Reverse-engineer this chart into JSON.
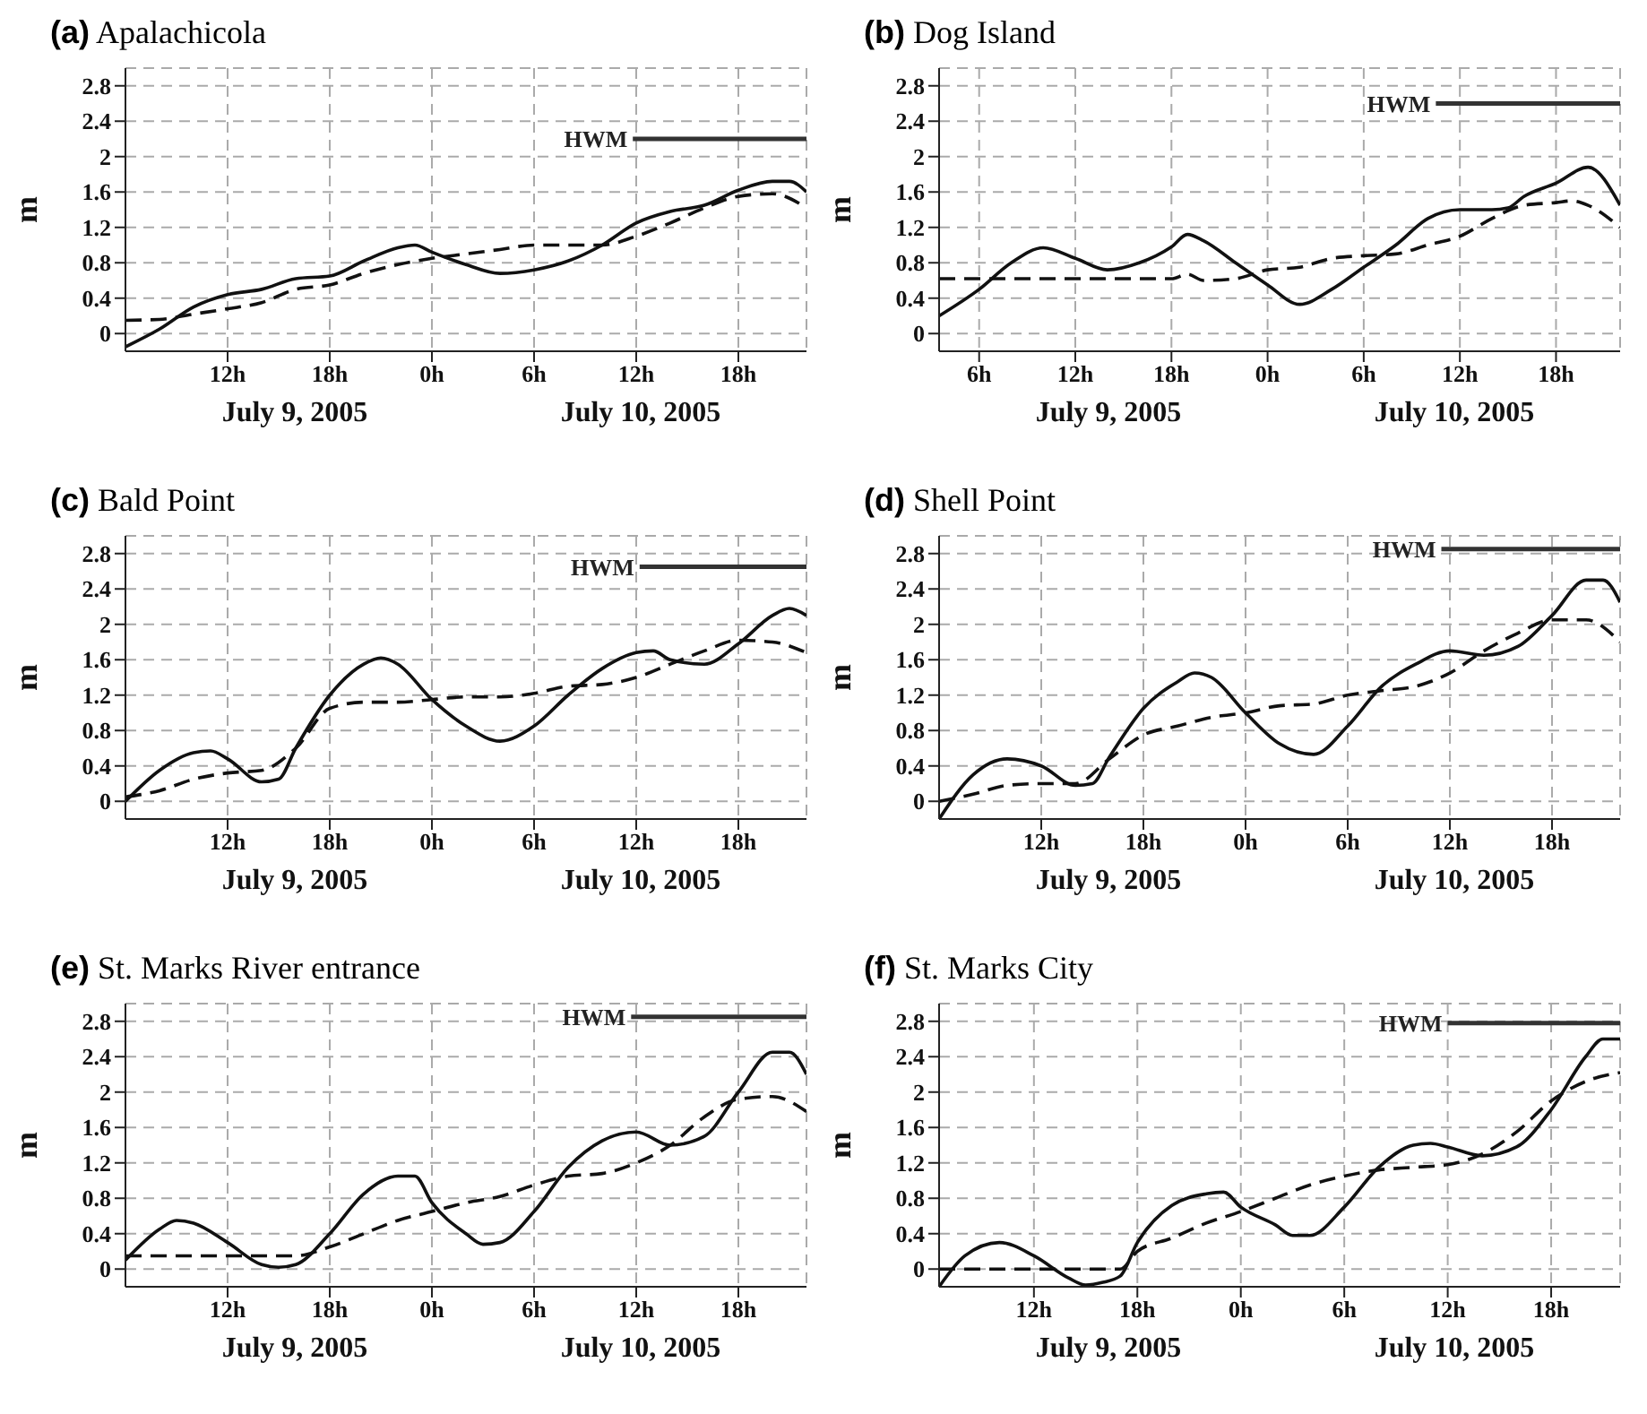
{
  "chart_data": [
    {
      "type": "line",
      "title": "(a) Apalachicola",
      "ylabel": "m",
      "annotations": [
        "July 9, 2005",
        "July 10, 2005"
      ],
      "xlim": [
        "2005-07-09T06:00",
        "2005-07-10T22:00"
      ],
      "xticks": [
        {
          "value": "2005-07-09T12:00",
          "label": "12h"
        },
        {
          "value": "2005-07-09T18:00",
          "label": "18h"
        },
        {
          "value": "2005-07-10T00:00",
          "label": "0h"
        },
        {
          "value": "2005-07-10T06:00",
          "label": "6h"
        },
        {
          "value": "2005-07-10T12:00",
          "label": "12h"
        },
        {
          "value": "2005-07-10T18:00",
          "label": "18h"
        }
      ],
      "ylim": [
        -0.2,
        3.0
      ],
      "yticks": [
        0,
        0.4,
        0.8,
        1.2,
        1.6,
        2,
        2.4,
        2.8
      ],
      "grid": true,
      "series": [
        {
          "color": "#111111",
          "line_style": "solid",
          "x": [
            "2005-07-09T06:00",
            "2005-07-09T08:00",
            "2005-07-09T10:00",
            "2005-07-09T12:00",
            "2005-07-09T14:00",
            "2005-07-09T16:00",
            "2005-07-09T18:00",
            "2005-07-09T20:00",
            "2005-07-09T22:00",
            "2005-07-09T23:00",
            "2005-07-10T00:00",
            "2005-07-10T02:00",
            "2005-07-10T04:00",
            "2005-07-10T06:00",
            "2005-07-10T08:00",
            "2005-07-10T10:00",
            "2005-07-10T12:00",
            "2005-07-10T14:00",
            "2005-07-10T16:00",
            "2005-07-10T18:00",
            "2005-07-10T20:00",
            "2005-07-10T21:00",
            "2005-07-10T22:00"
          ],
          "values": [
            -0.15,
            0.05,
            0.3,
            0.44,
            0.5,
            0.62,
            0.65,
            0.82,
            0.97,
            1.0,
            0.92,
            0.78,
            0.68,
            0.72,
            0.82,
            1.0,
            1.25,
            1.38,
            1.45,
            1.62,
            1.72,
            1.72,
            1.6
          ]
        },
        {
          "color": "#111111",
          "line_style": "dashed",
          "x": [
            "2005-07-09T06:00",
            "2005-07-09T08:00",
            "2005-07-09T10:00",
            "2005-07-09T12:00",
            "2005-07-09T14:00",
            "2005-07-09T16:00",
            "2005-07-09T18:00",
            "2005-07-09T20:00",
            "2005-07-09T22:00",
            "2005-07-10T00:00",
            "2005-07-10T02:00",
            "2005-07-10T04:00",
            "2005-07-10T06:00",
            "2005-07-10T08:00",
            "2005-07-10T10:00",
            "2005-07-10T12:00",
            "2005-07-10T14:00",
            "2005-07-10T16:00",
            "2005-07-10T18:00",
            "2005-07-10T20:00",
            "2005-07-10T22:00"
          ],
          "values": [
            0.15,
            0.16,
            0.22,
            0.28,
            0.35,
            0.5,
            0.55,
            0.68,
            0.78,
            0.85,
            0.9,
            0.95,
            1.0,
            1.0,
            1.0,
            1.1,
            1.25,
            1.42,
            1.55,
            1.58,
            1.42
          ]
        },
        {
          "name": "HWM",
          "color": "#333333",
          "line_style": "solid",
          "x": [
            "2005-07-10T11:48",
            "2005-07-10T22:00"
          ],
          "values": [
            2.2,
            2.2
          ]
        }
      ]
    },
    {
      "type": "line",
      "title": "(b) Dog Island",
      "ylabel": "m",
      "annotations": [
        "July 9, 2005",
        "July 10, 2005"
      ],
      "xlim": [
        "2005-07-09T03:30",
        "2005-07-10T22:00"
      ],
      "xticks": [
        {
          "value": "2005-07-09T06:00",
          "label": "6h"
        },
        {
          "value": "2005-07-09T12:00",
          "label": "12h"
        },
        {
          "value": "2005-07-09T18:00",
          "label": "18h"
        },
        {
          "value": "2005-07-10T00:00",
          "label": "0h"
        },
        {
          "value": "2005-07-10T06:00",
          "label": "6h"
        },
        {
          "value": "2005-07-10T12:00",
          "label": "12h"
        },
        {
          "value": "2005-07-10T18:00",
          "label": "18h"
        }
      ],
      "ylim": [
        -0.2,
        3.0
      ],
      "yticks": [
        0,
        0.4,
        0.8,
        1.2,
        1.6,
        2,
        2.4,
        2.8
      ],
      "grid": true,
      "series": [
        {
          "color": "#111111",
          "line_style": "solid",
          "x": [
            "2005-07-09T03:30",
            "2005-07-09T06:00",
            "2005-07-09T08:00",
            "2005-07-09T10:00",
            "2005-07-09T12:00",
            "2005-07-09T14:00",
            "2005-07-09T16:00",
            "2005-07-09T18:00",
            "2005-07-09T19:00",
            "2005-07-09T20:00",
            "2005-07-09T22:00",
            "2005-07-10T00:00",
            "2005-07-10T02:00",
            "2005-07-10T04:00",
            "2005-07-10T06:00",
            "2005-07-10T08:00",
            "2005-07-10T10:00",
            "2005-07-10T12:00",
            "2005-07-10T14:00",
            "2005-07-10T15:00",
            "2005-07-10T16:00",
            "2005-07-10T18:00",
            "2005-07-10T20:00",
            "2005-07-10T22:00"
          ],
          "values": [
            0.2,
            0.5,
            0.8,
            0.97,
            0.85,
            0.72,
            0.8,
            0.98,
            1.12,
            1.05,
            0.8,
            0.55,
            0.33,
            0.5,
            0.75,
            1.0,
            1.3,
            1.4,
            1.4,
            1.42,
            1.55,
            1.7,
            1.88,
            1.45
          ]
        },
        {
          "color": "#111111",
          "line_style": "dashed",
          "x": [
            "2005-07-09T03:30",
            "2005-07-09T18:00",
            "2005-07-09T19:00",
            "2005-07-09T20:00",
            "2005-07-09T22:00",
            "2005-07-10T00:00",
            "2005-07-10T02:00",
            "2005-07-10T04:00",
            "2005-07-10T06:00",
            "2005-07-10T08:00",
            "2005-07-10T10:00",
            "2005-07-10T12:00",
            "2005-07-10T14:00",
            "2005-07-10T16:00",
            "2005-07-10T18:00",
            "2005-07-10T19:00",
            "2005-07-10T20:00",
            "2005-07-10T22:00"
          ],
          "values": [
            0.62,
            0.62,
            0.67,
            0.6,
            0.62,
            0.72,
            0.75,
            0.85,
            0.88,
            0.9,
            1.0,
            1.1,
            1.3,
            1.45,
            1.48,
            1.5,
            1.45,
            1.2
          ]
        },
        {
          "name": "HWM",
          "color": "#333333",
          "line_style": "solid",
          "x": [
            "2005-07-10T10:30",
            "2005-07-10T22:00"
          ],
          "values": [
            2.6,
            2.6
          ]
        }
      ]
    },
    {
      "type": "line",
      "title": "(c) Bald Point",
      "ylabel": "m",
      "annotations": [
        "July 9, 2005",
        "July 10, 2005"
      ],
      "xlim": [
        "2005-07-09T06:00",
        "2005-07-10T22:00"
      ],
      "xticks": [
        {
          "value": "2005-07-09T12:00",
          "label": "12h"
        },
        {
          "value": "2005-07-09T18:00",
          "label": "18h"
        },
        {
          "value": "2005-07-10T00:00",
          "label": "0h"
        },
        {
          "value": "2005-07-10T06:00",
          "label": "6h"
        },
        {
          "value": "2005-07-10T12:00",
          "label": "12h"
        },
        {
          "value": "2005-07-10T18:00",
          "label": "18h"
        }
      ],
      "ylim": [
        -0.2,
        3.0
      ],
      "yticks": [
        0,
        0.4,
        0.8,
        1.2,
        1.6,
        2,
        2.4,
        2.8
      ],
      "grid": true,
      "series": [
        {
          "color": "#111111",
          "line_style": "solid",
          "x": [
            "2005-07-09T06:00",
            "2005-07-09T08:00",
            "2005-07-09T10:00",
            "2005-07-09T11:00",
            "2005-07-09T12:00",
            "2005-07-09T14:00",
            "2005-07-09T15:00",
            "2005-07-09T16:00",
            "2005-07-09T18:00",
            "2005-07-09T20:00",
            "2005-07-09T21:00",
            "2005-07-09T22:00",
            "2005-07-10T00:00",
            "2005-07-10T02:00",
            "2005-07-10T04:00",
            "2005-07-10T06:00",
            "2005-07-10T08:00",
            "2005-07-10T10:00",
            "2005-07-10T12:00",
            "2005-07-10T13:00",
            "2005-07-10T14:00",
            "2005-07-10T16:00",
            "2005-07-10T18:00",
            "2005-07-10T20:00",
            "2005-07-10T21:00",
            "2005-07-10T22:00"
          ],
          "values": [
            0,
            0.35,
            0.55,
            0.57,
            0.48,
            0.22,
            0.25,
            0.6,
            1.2,
            1.55,
            1.62,
            1.55,
            1.15,
            0.85,
            0.68,
            0.85,
            1.2,
            1.5,
            1.68,
            1.7,
            1.6,
            1.55,
            1.78,
            2.1,
            2.18,
            2.1
          ]
        },
        {
          "color": "#111111",
          "line_style": "dashed",
          "x": [
            "2005-07-09T06:00",
            "2005-07-09T08:00",
            "2005-07-09T10:00",
            "2005-07-09T12:00",
            "2005-07-09T14:00",
            "2005-07-09T16:00",
            "2005-07-09T18:00",
            "2005-07-09T20:00",
            "2005-07-09T22:00",
            "2005-07-10T00:00",
            "2005-07-10T02:00",
            "2005-07-10T04:00",
            "2005-07-10T06:00",
            "2005-07-10T08:00",
            "2005-07-10T10:00",
            "2005-07-10T12:00",
            "2005-07-10T14:00",
            "2005-07-10T16:00",
            "2005-07-10T18:00",
            "2005-07-10T20:00",
            "2005-07-10T22:00"
          ],
          "values": [
            0.05,
            0.12,
            0.25,
            0.32,
            0.35,
            0.6,
            1.05,
            1.12,
            1.12,
            1.15,
            1.18,
            1.18,
            1.22,
            1.3,
            1.32,
            1.4,
            1.55,
            1.7,
            1.82,
            1.8,
            1.68
          ]
        },
        {
          "name": "HWM",
          "color": "#333333",
          "line_style": "solid",
          "x": [
            "2005-07-10T12:12",
            "2005-07-10T22:00"
          ],
          "values": [
            2.65,
            2.65
          ]
        }
      ]
    },
    {
      "type": "line",
      "title": "(d) Shell Point",
      "ylabel": "m",
      "annotations": [
        "July 9, 2005",
        "July 10, 2005"
      ],
      "xlim": [
        "2005-07-09T06:00",
        "2005-07-10T22:00"
      ],
      "xticks": [
        {
          "value": "2005-07-09T12:00",
          "label": "12h"
        },
        {
          "value": "2005-07-09T18:00",
          "label": "18h"
        },
        {
          "value": "2005-07-10T00:00",
          "label": "0h"
        },
        {
          "value": "2005-07-10T06:00",
          "label": "6h"
        },
        {
          "value": "2005-07-10T12:00",
          "label": "12h"
        },
        {
          "value": "2005-07-10T18:00",
          "label": "18h"
        }
      ],
      "ylim": [
        -0.2,
        3.0
      ],
      "yticks": [
        0,
        0.4,
        0.8,
        1.2,
        1.6,
        2,
        2.4,
        2.8
      ],
      "grid": true,
      "series": [
        {
          "color": "#111111",
          "line_style": "solid",
          "x": [
            "2005-07-09T06:00",
            "2005-07-09T08:00",
            "2005-07-09T10:00",
            "2005-07-09T12:00",
            "2005-07-09T14:00",
            "2005-07-09T15:00",
            "2005-07-09T16:00",
            "2005-07-09T18:00",
            "2005-07-09T20:00",
            "2005-07-09T21:00",
            "2005-07-09T22:00",
            "2005-07-10T00:00",
            "2005-07-10T02:00",
            "2005-07-10T04:00",
            "2005-07-10T06:00",
            "2005-07-10T08:00",
            "2005-07-10T10:00",
            "2005-07-10T12:00",
            "2005-07-10T14:00",
            "2005-07-10T16:00",
            "2005-07-10T18:00",
            "2005-07-10T20:00",
            "2005-07-10T21:00",
            "2005-07-10T22:00"
          ],
          "values": [
            -0.2,
            0.3,
            0.48,
            0.4,
            0.18,
            0.2,
            0.5,
            1.05,
            1.35,
            1.45,
            1.4,
            1.0,
            0.65,
            0.53,
            0.85,
            1.3,
            1.55,
            1.7,
            1.65,
            1.75,
            2.1,
            2.5,
            2.5,
            2.25
          ]
        },
        {
          "color": "#111111",
          "line_style": "dashed",
          "x": [
            "2005-07-09T06:00",
            "2005-07-09T08:00",
            "2005-07-09T10:00",
            "2005-07-09T12:00",
            "2005-07-09T14:00",
            "2005-07-09T16:00",
            "2005-07-09T18:00",
            "2005-07-09T20:00",
            "2005-07-09T22:00",
            "2005-07-10T00:00",
            "2005-07-10T02:00",
            "2005-07-10T04:00",
            "2005-07-10T06:00",
            "2005-07-10T08:00",
            "2005-07-10T10:00",
            "2005-07-10T12:00",
            "2005-07-10T14:00",
            "2005-07-10T16:00",
            "2005-07-10T18:00",
            "2005-07-10T20:00",
            "2005-07-10T22:00"
          ],
          "values": [
            0,
            0.08,
            0.18,
            0.2,
            0.2,
            0.48,
            0.75,
            0.85,
            0.95,
            1.0,
            1.08,
            1.1,
            1.2,
            1.25,
            1.3,
            1.45,
            1.7,
            1.9,
            2.05,
            2.05,
            1.8
          ]
        },
        {
          "name": "HWM",
          "color": "#333333",
          "line_style": "solid",
          "x": [
            "2005-07-10T11:30",
            "2005-07-10T22:00"
          ],
          "values": [
            2.85,
            2.85
          ]
        }
      ]
    },
    {
      "type": "line",
      "title": "(e) St. Marks River entrance",
      "ylabel": "m",
      "annotations": [
        "July 9, 2005",
        "July 10, 2005"
      ],
      "xlim": [
        "2005-07-09T06:00",
        "2005-07-10T22:00"
      ],
      "xticks": [
        {
          "value": "2005-07-09T12:00",
          "label": "12h"
        },
        {
          "value": "2005-07-09T18:00",
          "label": "18h"
        },
        {
          "value": "2005-07-10T00:00",
          "label": "0h"
        },
        {
          "value": "2005-07-10T06:00",
          "label": "6h"
        },
        {
          "value": "2005-07-10T12:00",
          "label": "12h"
        },
        {
          "value": "2005-07-10T18:00",
          "label": "18h"
        }
      ],
      "ylim": [
        -0.2,
        3.0
      ],
      "yticks": [
        0,
        0.4,
        0.8,
        1.2,
        1.6,
        2,
        2.4,
        2.8
      ],
      "grid": true,
      "series": [
        {
          "color": "#111111",
          "line_style": "solid",
          "x": [
            "2005-07-09T06:00",
            "2005-07-09T08:00",
            "2005-07-09T09:00",
            "2005-07-09T10:00",
            "2005-07-09T12:00",
            "2005-07-09T14:00",
            "2005-07-09T15:00",
            "2005-07-09T16:00",
            "2005-07-09T18:00",
            "2005-07-09T20:00",
            "2005-07-09T22:00",
            "2005-07-09T23:00",
            "2005-07-10T00:00",
            "2005-07-10T02:00",
            "2005-07-10T03:00",
            "2005-07-10T04:00",
            "2005-07-10T06:00",
            "2005-07-10T08:00",
            "2005-07-10T10:00",
            "2005-07-10T12:00",
            "2005-07-10T14:00",
            "2005-07-10T16:00",
            "2005-07-10T18:00",
            "2005-07-10T20:00",
            "2005-07-10T21:00",
            "2005-07-10T22:00"
          ],
          "values": [
            0.1,
            0.45,
            0.55,
            0.52,
            0.3,
            0.05,
            0.02,
            0.05,
            0.4,
            0.85,
            1.05,
            1.05,
            0.75,
            0.4,
            0.28,
            0.3,
            0.65,
            1.15,
            1.45,
            1.55,
            1.4,
            1.5,
            2.0,
            2.45,
            2.45,
            2.2
          ]
        },
        {
          "color": "#111111",
          "line_style": "dashed",
          "x": [
            "2005-07-09T06:00",
            "2005-07-09T10:00",
            "2005-07-09T14:00",
            "2005-07-09T16:00",
            "2005-07-09T18:00",
            "2005-07-09T20:00",
            "2005-07-09T22:00",
            "2005-07-10T00:00",
            "2005-07-10T02:00",
            "2005-07-10T04:00",
            "2005-07-10T06:00",
            "2005-07-10T08:00",
            "2005-07-10T10:00",
            "2005-07-10T12:00",
            "2005-07-10T14:00",
            "2005-07-10T16:00",
            "2005-07-10T18:00",
            "2005-07-10T20:00",
            "2005-07-10T22:00"
          ],
          "values": [
            0.15,
            0.15,
            0.15,
            0.15,
            0.25,
            0.4,
            0.55,
            0.65,
            0.75,
            0.82,
            0.95,
            1.05,
            1.08,
            1.2,
            1.4,
            1.72,
            1.92,
            1.95,
            1.78
          ]
        },
        {
          "name": "HWM",
          "color": "#333333",
          "line_style": "solid",
          "x": [
            "2005-07-10T11:42",
            "2005-07-10T22:00"
          ],
          "values": [
            2.85,
            2.85
          ]
        }
      ]
    },
    {
      "type": "line",
      "title": "(f) St. Marks City",
      "ylabel": "m",
      "annotations": [
        "July 9, 2005",
        "July 10, 2005"
      ],
      "xlim": [
        "2005-07-09T06:30",
        "2005-07-10T22:00"
      ],
      "xticks": [
        {
          "value": "2005-07-09T12:00",
          "label": "12h"
        },
        {
          "value": "2005-07-09T18:00",
          "label": "18h"
        },
        {
          "value": "2005-07-10T00:00",
          "label": "0h"
        },
        {
          "value": "2005-07-10T06:00",
          "label": "6h"
        },
        {
          "value": "2005-07-10T12:00",
          "label": "12h"
        },
        {
          "value": "2005-07-10T18:00",
          "label": "18h"
        }
      ],
      "ylim": [
        -0.2,
        3.0
      ],
      "yticks": [
        0,
        0.4,
        0.8,
        1.2,
        1.6,
        2,
        2.4,
        2.8
      ],
      "grid": true,
      "series": [
        {
          "color": "#111111",
          "line_style": "solid",
          "x": [
            "2005-07-09T06:30",
            "2005-07-09T08:00",
            "2005-07-09T10:00",
            "2005-07-09T12:00",
            "2005-07-09T14:00",
            "2005-07-09T15:00",
            "2005-07-09T16:00",
            "2005-07-09T17:00",
            "2005-07-09T18:00",
            "2005-07-09T20:00",
            "2005-07-09T22:00",
            "2005-07-09T23:00",
            "2005-07-10T00:00",
            "2005-07-10T02:00",
            "2005-07-10T03:00",
            "2005-07-10T04:00",
            "2005-07-10T06:00",
            "2005-07-10T08:00",
            "2005-07-10T10:00",
            "2005-07-10T11:00",
            "2005-07-10T12:00",
            "2005-07-10T14:00",
            "2005-07-10T16:00",
            "2005-07-10T18:00",
            "2005-07-10T20:00",
            "2005-07-10T21:00",
            "2005-07-10T22:00"
          ],
          "values": [
            -0.2,
            0.15,
            0.3,
            0.15,
            -0.1,
            -0.18,
            -0.15,
            -0.08,
            0.3,
            0.72,
            0.85,
            0.87,
            0.7,
            0.5,
            0.38,
            0.38,
            0.7,
            1.15,
            1.4,
            1.42,
            1.38,
            1.28,
            1.38,
            1.8,
            2.4,
            2.6,
            2.6
          ]
        },
        {
          "color": "#111111",
          "line_style": "dashed",
          "x": [
            "2005-07-09T06:30",
            "2005-07-09T12:00",
            "2005-07-09T16:00",
            "2005-07-09T17:00",
            "2005-07-09T18:00",
            "2005-07-09T20:00",
            "2005-07-09T22:00",
            "2005-07-10T00:00",
            "2005-07-10T02:00",
            "2005-07-10T04:00",
            "2005-07-10T06:00",
            "2005-07-10T08:00",
            "2005-07-10T10:00",
            "2005-07-10T12:00",
            "2005-07-10T14:00",
            "2005-07-10T16:00",
            "2005-07-10T18:00",
            "2005-07-10T20:00",
            "2005-07-10T22:00"
          ],
          "values": [
            0,
            0,
            0,
            0,
            0.2,
            0.35,
            0.52,
            0.65,
            0.8,
            0.95,
            1.05,
            1.12,
            1.15,
            1.18,
            1.3,
            1.55,
            1.9,
            2.12,
            2.22
          ]
        },
        {
          "name": "HWM",
          "color": "#333333",
          "line_style": "solid",
          "x": [
            "2005-07-10T12:00",
            "2005-07-10T22:00"
          ],
          "values": [
            2.78,
            2.78
          ]
        }
      ]
    }
  ]
}
